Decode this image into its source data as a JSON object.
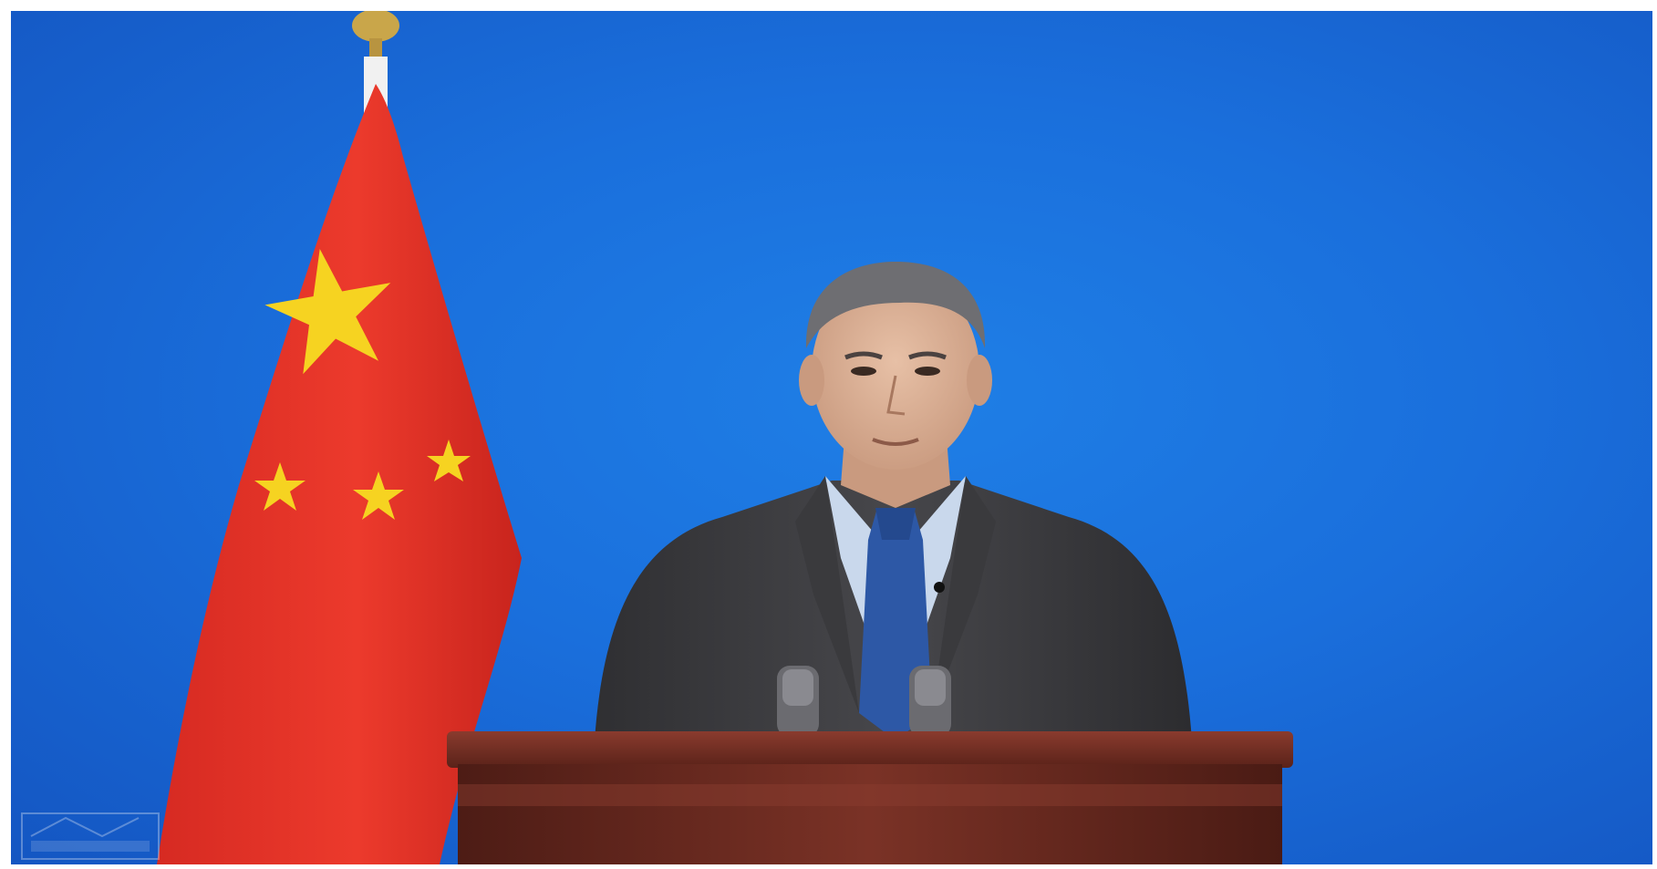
{
  "scene": {
    "background_color": "#1a6fdc",
    "flag_red": "#e8322a",
    "flag_star": "#f6d321",
    "suit_color": "#3b3b3e",
    "shirt_color": "#c9d8ec",
    "tie_color": "#2d58a6",
    "podium_color": "#6a2b22",
    "elements": [
      "flag-icon",
      "speaker-figure",
      "podium",
      "microphone-icon",
      "watermark-logo"
    ]
  }
}
